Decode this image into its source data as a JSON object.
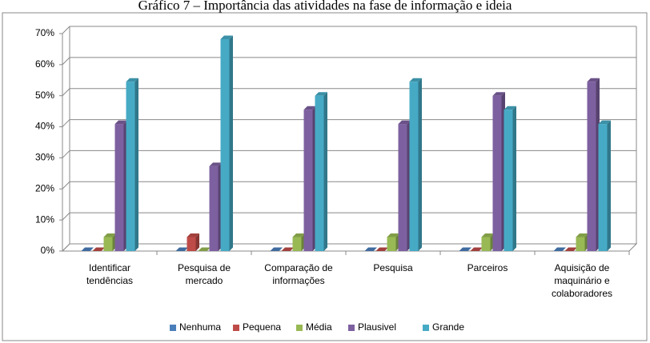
{
  "chart_data": {
    "type": "bar3d",
    "title": "Gráfico 7 – Importância das atividades na fase de informação e ideia",
    "categories": [
      "Identificar tendências",
      "Pesquisa de mercado",
      "Comparação de informações",
      "Pesquisa",
      "Parceiros",
      "Aquisição de maquinário e colaboradores"
    ],
    "series": [
      {
        "name": "Nenhuma",
        "color": "#4a7ebb",
        "values": [
          0,
          0,
          0,
          0,
          0,
          0
        ]
      },
      {
        "name": "Pequena",
        "color": "#be4b48",
        "values": [
          0,
          4.5,
          0,
          0,
          0,
          0
        ]
      },
      {
        "name": "Média",
        "color": "#98b954",
        "values": [
          4.5,
          0,
          4.5,
          4.5,
          4.5,
          4.5
        ]
      },
      {
        "name": "Plausivel",
        "color": "#7d60a0",
        "values": [
          40.9,
          27.3,
          45.5,
          40.9,
          50,
          54.5
        ]
      },
      {
        "name": "Grande",
        "color": "#46aac5",
        "values": [
          54.5,
          68.2,
          50,
          54.5,
          45.5,
          40.9
        ]
      }
    ],
    "ylim": [
      0,
      70
    ],
    "yticks": [
      {
        "value": 0,
        "label": "0%"
      },
      {
        "value": 10,
        "label": "10%"
      },
      {
        "value": 20,
        "label": "20%"
      },
      {
        "value": 30,
        "label": "30%"
      },
      {
        "value": 40,
        "label": "40%"
      },
      {
        "value": 50,
        "label": "50%"
      },
      {
        "value": 60,
        "label": "60%"
      },
      {
        "value": 70,
        "label": "70%"
      }
    ],
    "grid": true,
    "legend": "bottom"
  }
}
